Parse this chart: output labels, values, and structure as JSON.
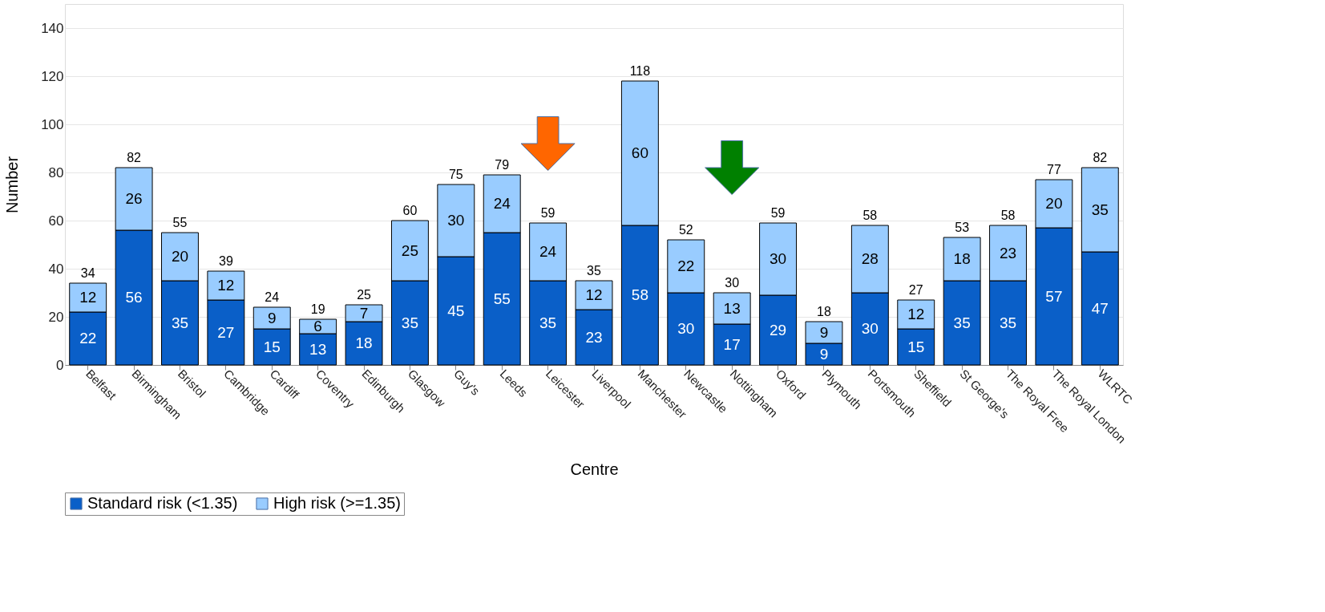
{
  "chart_data": {
    "type": "bar",
    "stacked": true,
    "xlabel": "Centre",
    "ylabel": "Number",
    "categories": [
      "Belfast",
      "Birmingham",
      "Bristol",
      "Cambridge",
      "Cardiff",
      "Coventry",
      "Edinburgh",
      "Glasgow",
      "Guy's",
      "Leeds",
      "Leicester",
      "Liverpool",
      "Manchester",
      "Newcastle",
      "Nottingham",
      "Oxford",
      "Plymouth",
      "Portsmouth",
      "Sheffield",
      "St George's",
      "The Royal Free",
      "The Royal London",
      "WLRTC"
    ],
    "series": [
      {
        "name": "Standard risk (<1.35)",
        "color": "#0a5fc8",
        "values": [
          22,
          56,
          35,
          27,
          15,
          13,
          18,
          35,
          45,
          55,
          35,
          23,
          58,
          30,
          17,
          29,
          9,
          30,
          15,
          35,
          35,
          57,
          47
        ]
      },
      {
        "name": "High risk (>=1.35)",
        "color": "#99ccff",
        "values": [
          12,
          26,
          20,
          12,
          9,
          6,
          7,
          25,
          30,
          24,
          24,
          12,
          60,
          22,
          13,
          30,
          9,
          28,
          12,
          18,
          23,
          20,
          35
        ]
      }
    ],
    "totals": [
      "34",
      "82",
      "55",
      "39",
      "24",
      "19",
      "25",
      "60",
      "75",
      "79",
      "59",
      "35",
      "118",
      "52",
      "30",
      "59",
      "18",
      "58",
      "27",
      "53",
      "58",
      "77",
      "82"
    ],
    "data_labels": true,
    "ylim": [
      0,
      150
    ],
    "yticks": [
      0,
      20,
      40,
      60,
      80,
      100,
      120,
      140
    ],
    "grid": "y",
    "legend": "bottom"
  }
}
